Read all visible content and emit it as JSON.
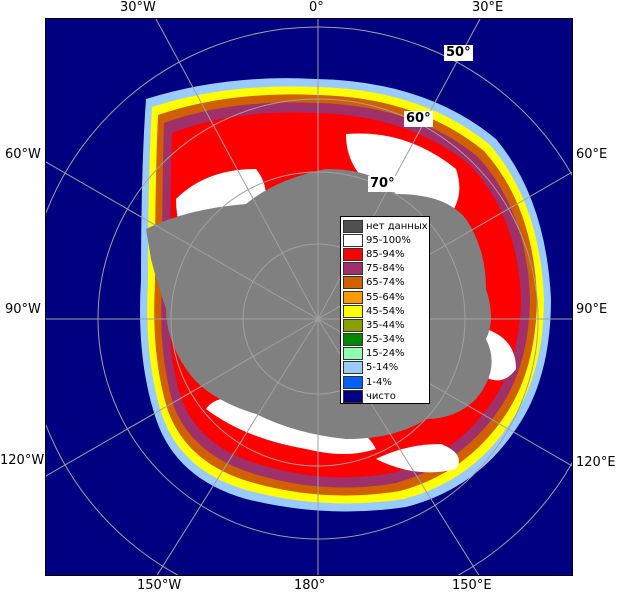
{
  "top_labels": [
    "30°W",
    "0°",
    "30°E"
  ],
  "bottom_labels": [
    "150°W",
    "180°",
    "150°E"
  ],
  "left_labels": [
    "60°W",
    "90°W",
    "120°W"
  ],
  "right_labels": [
    "60°E",
    "90°E",
    "120°E"
  ],
  "lat_labels": [
    "50°",
    "60°",
    "70°"
  ],
  "legend": [
    {
      "label": "нет данных",
      "color": "#505050"
    },
    {
      "label": "95-100%",
      "color": "#ffffff"
    },
    {
      "label": "85-94%",
      "color": "#ff0000"
    },
    {
      "label": "75-84%",
      "color": "#a0306a"
    },
    {
      "label": "65-74%",
      "color": "#d06000"
    },
    {
      "label": "55-64%",
      "color": "#ff9900"
    },
    {
      "label": "45-54%",
      "color": "#ffff00"
    },
    {
      "label": "35-44%",
      "color": "#8aa000"
    },
    {
      "label": "25-34%",
      "color": "#008800"
    },
    {
      "label": "15-24%",
      "color": "#90ffb0"
    },
    {
      "label": "5-14%",
      "color": "#9acbff"
    },
    {
      "label": "1-4%",
      "color": "#0060ff"
    },
    {
      "label": "чисто",
      "color": "#000080"
    }
  ],
  "colors": {
    "ocean": "#000080",
    "land": "#808080",
    "ice_high": "#ffffff",
    "ice_85": "#ff0000",
    "ice_75": "#a0306a",
    "ice_65": "#d06000",
    "ice_yellow": "#ffff00",
    "ice_green": "#008800",
    "ice_light": "#9acbff",
    "grid": "#a0a0a0"
  }
}
